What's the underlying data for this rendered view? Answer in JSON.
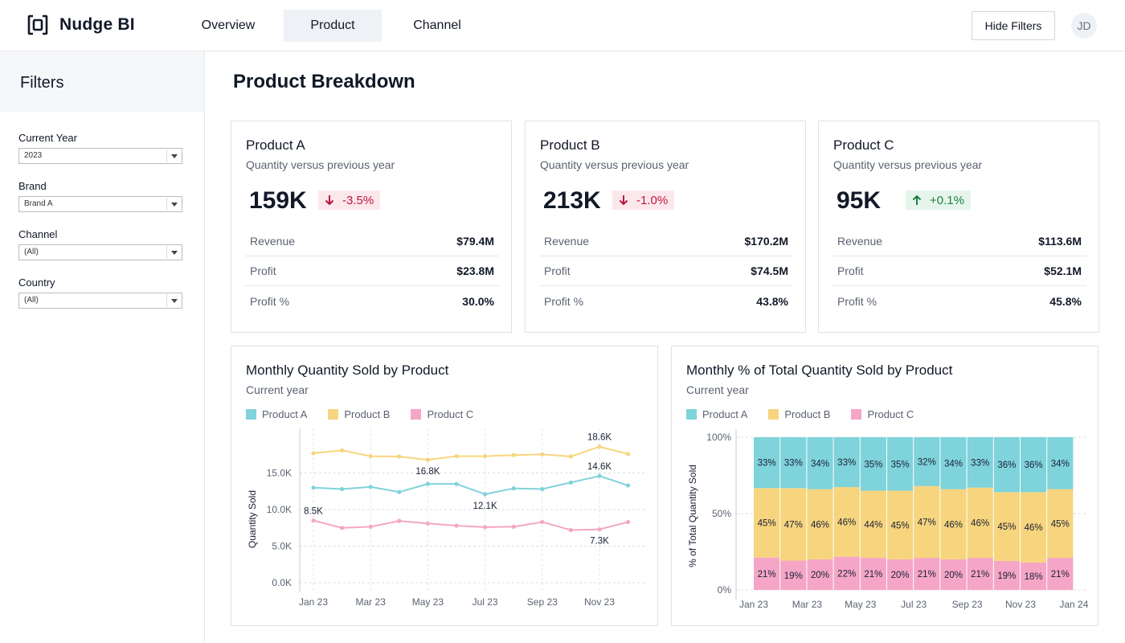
{
  "app": {
    "name": "Nudge BI"
  },
  "nav": {
    "tabs": [
      "Overview",
      "Product",
      "Channel"
    ],
    "active": "Product"
  },
  "header": {
    "hide_filters_label": "Hide Filters",
    "avatar_initials": "JD"
  },
  "sidebar": {
    "title": "Filters",
    "filters": [
      {
        "label": "Current Year",
        "value": "2023"
      },
      {
        "label": "Brand",
        "value": "Brand A"
      },
      {
        "label": "Channel",
        "value": "(All)"
      },
      {
        "label": "Country",
        "value": "(All)"
      }
    ]
  },
  "page": {
    "title": "Product Breakdown"
  },
  "colors": {
    "product_a": "#7fd3da",
    "product_b": "#f7d57e",
    "product_c": "#f5a6c6",
    "down": "#c0143c",
    "up": "#1a7f43"
  },
  "kpis": [
    {
      "name": "Product A",
      "subtitle": "Quantity versus previous year",
      "value": "159K",
      "change": "-3.5%",
      "direction": "down",
      "rows": [
        {
          "label": "Revenue",
          "value": "$79.4M"
        },
        {
          "label": "Profit",
          "value": "$23.8M"
        },
        {
          "label": "Profit %",
          "value": "30.0%"
        }
      ]
    },
    {
      "name": "Product B",
      "subtitle": "Quantity versus previous year",
      "value": "213K",
      "change": "-1.0%",
      "direction": "down",
      "rows": [
        {
          "label": "Revenue",
          "value": "$170.2M"
        },
        {
          "label": "Profit",
          "value": "$74.5M"
        },
        {
          "label": "Profit %",
          "value": "43.8%"
        }
      ]
    },
    {
      "name": "Product C",
      "subtitle": "Quantity versus previous year",
      "value": "95K",
      "change": "+0.1%",
      "direction": "up",
      "rows": [
        {
          "label": "Revenue",
          "value": "$113.6M"
        },
        {
          "label": "Profit",
          "value": "$52.1M"
        },
        {
          "label": "Profit %",
          "value": "45.8%"
        }
      ]
    }
  ],
  "charts": {
    "line": {
      "title": "Monthly Quantity Sold by Product",
      "subtitle": "Current year"
    },
    "stacked": {
      "title": "Monthly % of Total Quantity Sold by Product",
      "subtitle": "Current year"
    }
  },
  "chart_data": [
    {
      "type": "line",
      "title": "Monthly Quantity Sold by Product",
      "ylabel": "Quantity Sold",
      "ylim": [
        0,
        20000
      ],
      "yticks": [
        0,
        5000,
        10000,
        15000
      ],
      "ytick_labels": [
        "0.0K",
        "5.0K",
        "10.0K",
        "15.0K"
      ],
      "x": [
        "Jan 23",
        "Feb 23",
        "Mar 23",
        "Apr 23",
        "May 23",
        "Jun 23",
        "Jul 23",
        "Aug 23",
        "Sep 23",
        "Oct 23",
        "Nov 23",
        "Dec 23"
      ],
      "xtick_labels": [
        "Jan 23",
        "Mar 23",
        "May 23",
        "Jul 23",
        "Sep 23",
        "Nov 23"
      ],
      "legend": [
        "Product A",
        "Product B",
        "Product C"
      ],
      "series": [
        {
          "name": "Product B",
          "values": [
            17700,
            18100,
            17300,
            17250,
            16800,
            17300,
            17300,
            17450,
            17550,
            17250,
            18600,
            17600
          ],
          "annotations": [
            {
              "index": 4,
              "label": "16.8K",
              "position": "below"
            },
            {
              "index": 10,
              "label": "18.6K",
              "position": "above"
            }
          ]
        },
        {
          "name": "Product A",
          "values": [
            13000,
            12800,
            13100,
            12400,
            13500,
            13500,
            12100,
            12900,
            12800,
            13700,
            14600,
            13300
          ],
          "annotations": [
            {
              "index": 6,
              "label": "12.1K",
              "position": "below"
            },
            {
              "index": 10,
              "label": "14.6K",
              "position": "above"
            }
          ]
        },
        {
          "name": "Product C",
          "values": [
            8500,
            7500,
            7650,
            8450,
            8100,
            7800,
            7600,
            7650,
            8300,
            7200,
            7300,
            8300
          ],
          "annotations": [
            {
              "index": 0,
              "label": "8.5K",
              "position": "above"
            },
            {
              "index": 10,
              "label": "7.3K",
              "position": "below"
            }
          ]
        }
      ]
    },
    {
      "type": "bar",
      "stacked": true,
      "title": "Monthly % of Total Quantity Sold by Product",
      "ylabel": "% of Total Quantity Sold",
      "ylim": [
        0,
        100
      ],
      "yticks": [
        0,
        50,
        100
      ],
      "ytick_labels": [
        "0%",
        "50%",
        "100%"
      ],
      "categories": [
        "Jan 23",
        "Feb 23",
        "Mar 23",
        "Apr 23",
        "May 23",
        "Jun 23",
        "Jul 23",
        "Aug 23",
        "Sep 23",
        "Oct 23",
        "Nov 23",
        "Dec 23"
      ],
      "xtick_labels": [
        "Jan 23",
        "Mar 23",
        "May 23",
        "Jul 23",
        "Sep 23",
        "Nov 23",
        "Jan 24"
      ],
      "legend": [
        "Product A",
        "Product B",
        "Product C"
      ],
      "series": [
        {
          "name": "Product C",
          "values": [
            21,
            19,
            20,
            22,
            21,
            20,
            21,
            20,
            21,
            19,
            18,
            21
          ]
        },
        {
          "name": "Product B",
          "values": [
            45,
            47,
            46,
            46,
            44,
            45,
            47,
            46,
            46,
            45,
            46,
            45
          ]
        },
        {
          "name": "Product A",
          "values": [
            33,
            33,
            34,
            33,
            35,
            35,
            32,
            34,
            33,
            36,
            36,
            34
          ]
        }
      ]
    }
  ]
}
